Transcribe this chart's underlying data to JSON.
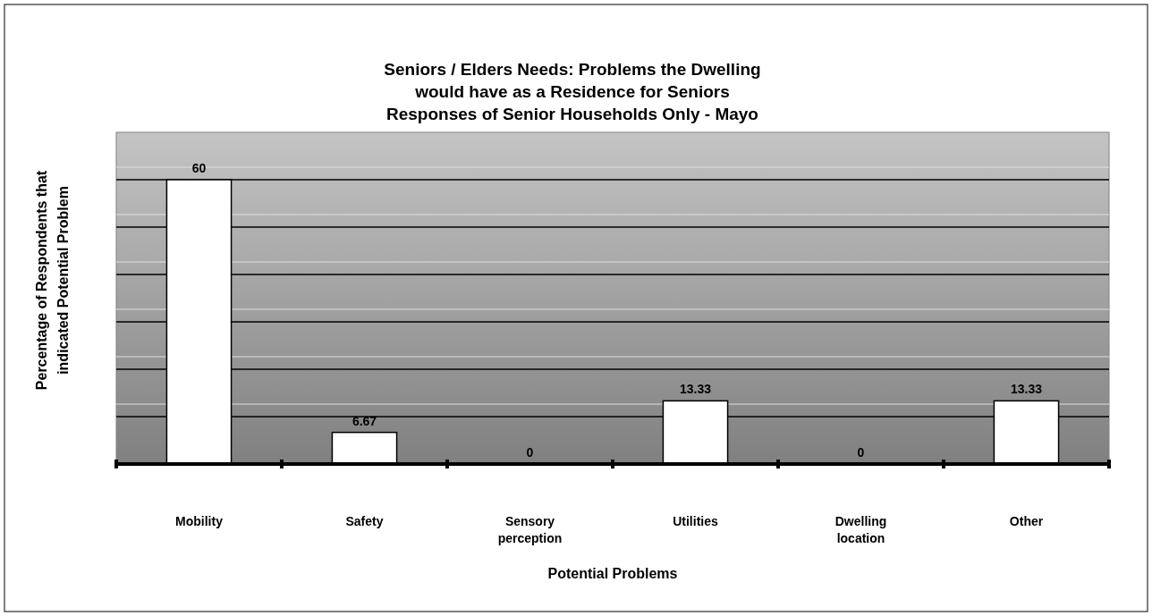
{
  "chart_data": {
    "type": "bar",
    "title": "Seniors / Elders Needs: Problems the Dwelling\nwould have as a Residence for Seniors\nResponses of Senior Households Only - Mayo",
    "xlabel": "Potential Problems",
    "ylabel": "Percentage of Respondents that\nindicated Potential Problem",
    "categories": [
      "Mobility",
      "Safety",
      "Sensory perception",
      "Utilities",
      "Dwelling location",
      "Other"
    ],
    "values": [
      60,
      6.67,
      0,
      13.33,
      0,
      13.33
    ],
    "color": "#ffffff",
    "ylim": [
      0,
      70
    ],
    "yticks": [
      {
        "value": 0,
        "label": null
      },
      {
        "value": 10,
        "label": null
      },
      {
        "value": 20,
        "label": null
      },
      {
        "value": 30,
        "label": null
      },
      {
        "value": 40,
        "label": null
      },
      {
        "value": 50,
        "label": null
      },
      {
        "value": 60,
        "label": null
      },
      {
        "value": 70,
        "label": null
      }
    ],
    "grid": "y",
    "tick_labels": "x",
    "data_labels": true
  }
}
